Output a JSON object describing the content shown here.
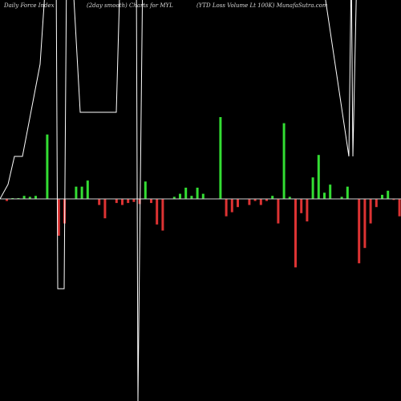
{
  "header": {
    "left": "Daily Force  Index",
    "middle": "(2day smooth) Charts for MYL",
    "right": "(YTD Loss Volume  Lt 100K) MunafaSutra.com"
  },
  "chart_data": {
    "type": "bar",
    "colors": {
      "positive": "#33dd33",
      "negative": "#dd3333",
      "line": "#ffffff",
      "zero": "#cccccc"
    },
    "bar_values": [
      -2,
      0.5,
      0.5,
      3,
      2,
      3,
      0,
      63,
      0,
      -36,
      -24,
      0,
      12,
      12,
      18,
      0,
      -6,
      -19,
      0,
      -4,
      -6,
      -4,
      -3,
      -5,
      17,
      -4,
      -25,
      -31,
      0,
      2,
      5,
      11,
      3,
      11,
      5,
      0,
      0,
      80,
      -17,
      -13,
      -8,
      0,
      -6,
      -2,
      -6,
      -2,
      3,
      -24,
      74,
      2,
      -67,
      -14,
      -22,
      21,
      43,
      6,
      14,
      0,
      2,
      12,
      0,
      -63,
      -48,
      -24,
      -8,
      4,
      8,
      -1,
      -17,
      2
    ],
    "line_values": [
      2,
      3,
      4,
      4,
      5,
      6,
      5,
      6,
      6,
      7,
      5,
      4,
      2,
      3,
      4,
      5,
      2,
      1,
      3,
      4,
      5,
      4,
      3,
      2,
      1,
      0,
      1,
      2,
      1,
      3,
      5,
      7,
      9,
      11,
      14,
      17,
      21,
      25,
      29,
      34,
      40,
      48,
      57,
      67,
      78,
      90,
      99
    ]
  }
}
